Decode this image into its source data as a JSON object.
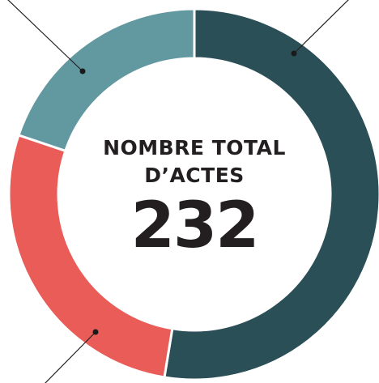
{
  "chart_data": {
    "type": "donut",
    "title": "NOMBRE TOTAL D’ACTES",
    "total": "232",
    "values": [
      122,
      64,
      46
    ],
    "colors": [
      "#2b4f57",
      "#e95c57",
      "#6299a1"
    ]
  }
}
